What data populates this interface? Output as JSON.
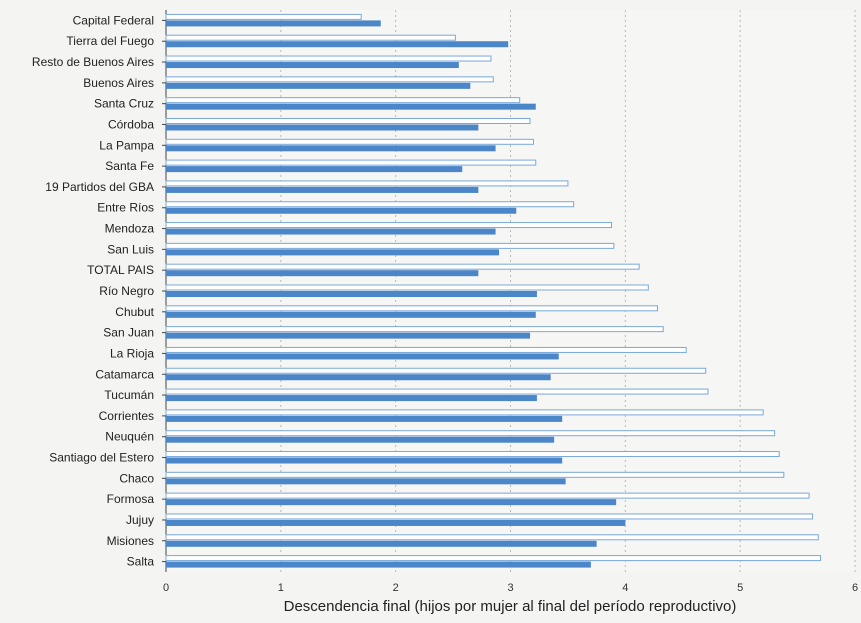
{
  "chart_data": {
    "type": "bar",
    "orientation": "horizontal",
    "title": "",
    "xlabel": "Descendencia final (hijos por mujer al final del período reproductivo)",
    "ylabel": "",
    "xlim": [
      0,
      6
    ],
    "xticks": [
      "0",
      "1",
      "2",
      "3",
      "4",
      "5",
      "6"
    ],
    "grid": "vertical dashed",
    "legend": "none",
    "colors": {
      "filled": "#4a86c8",
      "outline": "#7aa8d8",
      "outline_fill": "#ffffff"
    },
    "categories": [
      "Capital Federal",
      "Tierra del Fuego",
      "Resto de Buenos Aires",
      "Buenos Aires",
      "Santa Cruz",
      "Córdoba",
      "La Pampa",
      "Santa Fe",
      "19 Partidos del GBA",
      "Entre Ríos",
      "Mendoza",
      "San Luis",
      "TOTAL PAIS",
      "Río Negro",
      "Chubut",
      "San Juan",
      "La Rioja",
      "Catamarca",
      "Tucumán",
      "Corrientes",
      "Neuquén",
      "Santiago del Estero",
      "Chaco",
      "Formosa",
      "Jujuy",
      "Misiones",
      "Salta"
    ],
    "series": [
      {
        "style": "outline",
        "values": [
          1.7,
          2.52,
          2.83,
          2.85,
          3.08,
          3.17,
          3.2,
          3.22,
          3.5,
          3.55,
          3.88,
          3.9,
          4.12,
          4.2,
          4.28,
          4.33,
          4.53,
          4.7,
          4.72,
          5.2,
          5.3,
          5.34,
          5.38,
          5.6,
          5.63,
          5.68,
          5.7
        ]
      },
      {
        "style": "filled",
        "values": [
          1.87,
          2.98,
          2.55,
          2.65,
          3.22,
          2.72,
          2.87,
          2.58,
          2.72,
          3.05,
          2.87,
          2.9,
          2.72,
          3.23,
          3.22,
          3.17,
          3.42,
          3.35,
          3.23,
          3.45,
          3.38,
          3.45,
          3.48,
          3.92,
          4.0,
          3.75,
          3.7
        ]
      }
    ]
  }
}
